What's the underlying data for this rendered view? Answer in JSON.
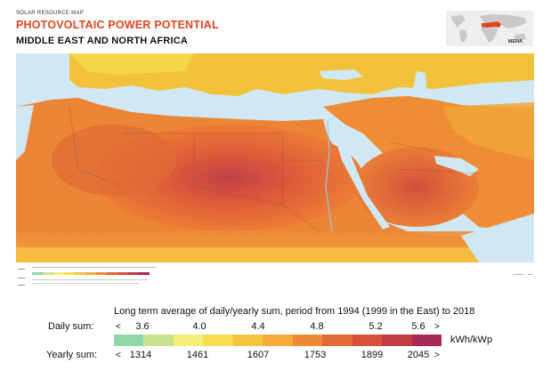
{
  "header": {
    "small": "SOLAR RESOURCE MAP",
    "title": "PHOTOVOLTAIC POWER POTENTIAL",
    "subtitle": "MIDDLE EAST AND NORTH AFRICA"
  },
  "inset": {
    "label": "MENA"
  },
  "legend": {
    "caption": "Long term average of daily/yearly sum, period from 1994 (1999 in the East) to 2018",
    "daily_label": "Daily sum:",
    "yearly_label": "Yearly sum:",
    "arrow_left": "<",
    "arrow_right": ">",
    "daily_ticks": [
      "3.6",
      "4.0",
      "4.4",
      "4.8",
      "5.2",
      "5.6"
    ],
    "yearly_ticks": [
      "1314",
      "1461",
      "1607",
      "1753",
      "1899",
      "2045"
    ],
    "unit": "kWh/kWp",
    "colors": [
      "#8fd8a6",
      "#c6e48e",
      "#f3ee7a",
      "#f6df4c",
      "#f7c53c",
      "#f5a93a",
      "#ee8a36",
      "#e46a35",
      "#d8503a",
      "#c33b43",
      "#a8285a"
    ]
  },
  "colors": {
    "title": "#e2461f",
    "sea": "#cfe8f3",
    "land_yellow": "#f5c23a",
    "land_orange": "#ee8a36",
    "land_red": "#d8503a",
    "land_deep": "#b73a4a"
  }
}
